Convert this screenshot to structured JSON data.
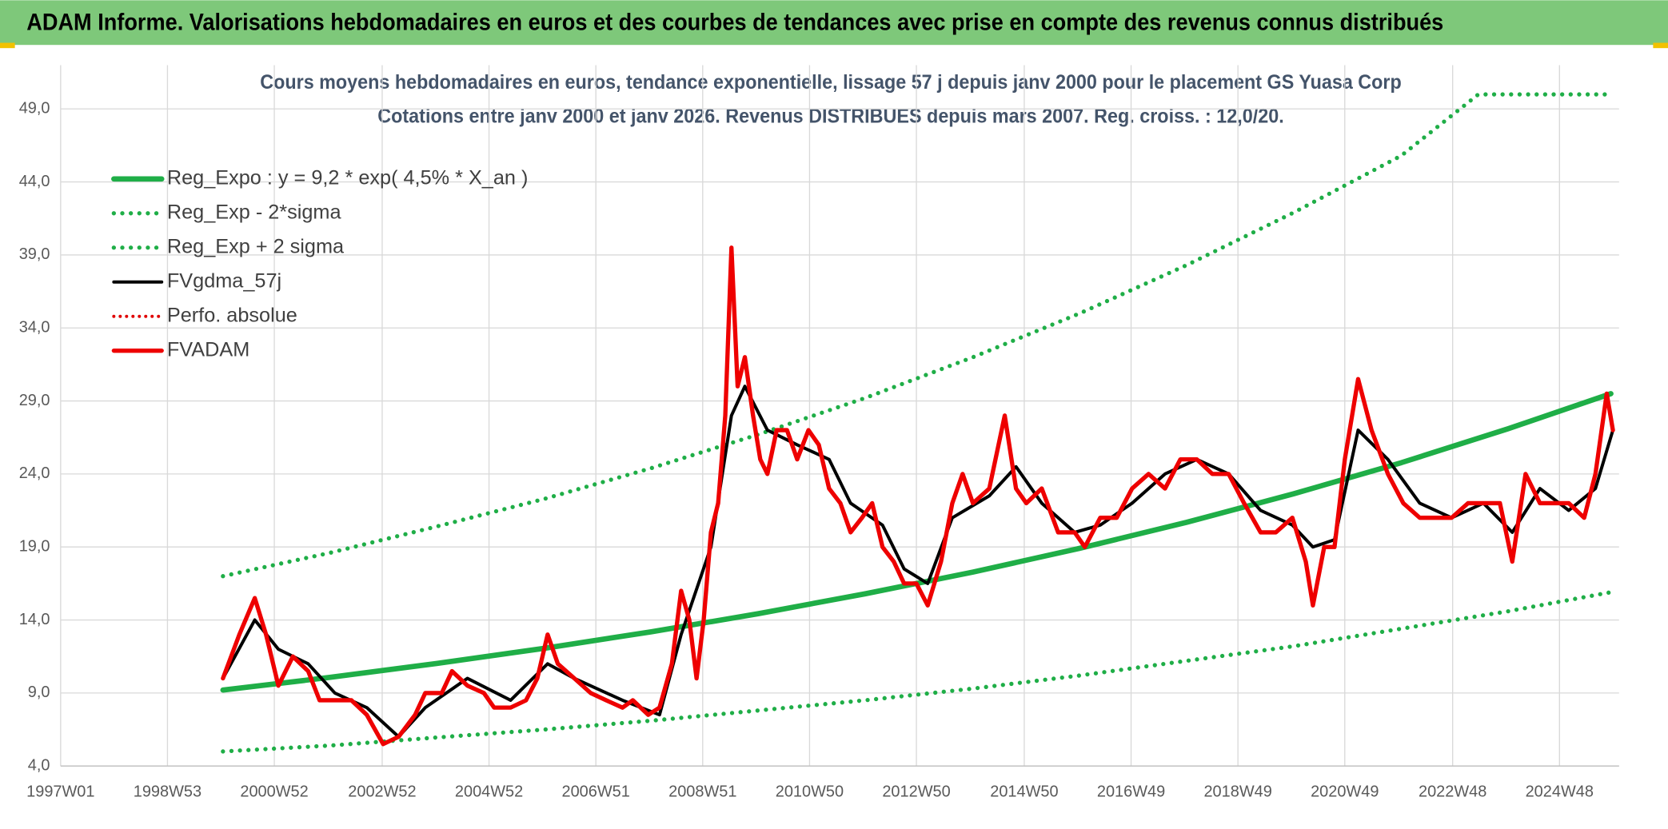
{
  "chart_data": {
    "type": "line",
    "header": "ADAM Informe. Valorisations hebdomadaires en euros et des courbes de tendances avec prise en compte des revenus connus distribués",
    "title": "Cours moyens hebdomadaires en euros, tendance exponentielle, lissage 57 j depuis janv 2000 pour le placement GS Yuasa Corp",
    "subtitle": "Cotations entre janv 2000 et janv 2026. Revenus DISTRIBUES depuis mars 2007. Reg. croiss. : 12,0/20.",
    "xlim": [
      0,
      1517
    ],
    "xticks": [
      {
        "value": 0,
        "label": "1997W01"
      },
      {
        "value": 104,
        "label": "1998W53"
      },
      {
        "value": 208,
        "label": "2000W52"
      },
      {
        "value": 313,
        "label": "2002W52"
      },
      {
        "value": 417,
        "label": "2004W52"
      },
      {
        "value": 521,
        "label": "2006W51"
      },
      {
        "value": 625,
        "label": "2008W51"
      },
      {
        "value": 729,
        "label": "2010W50"
      },
      {
        "value": 833,
        "label": "2012W50"
      },
      {
        "value": 938,
        "label": "2014W50"
      },
      {
        "value": 1042,
        "label": "2016W49"
      },
      {
        "value": 1146,
        "label": "2018W49"
      },
      {
        "value": 1250,
        "label": "2020W49"
      },
      {
        "value": 1355,
        "label": "2022W48"
      },
      {
        "value": 1459,
        "label": "2024W48"
      }
    ],
    "ylim": [
      4,
      52
    ],
    "yticks": [
      {
        "value": 4,
        "label": "4,0"
      },
      {
        "value": 9,
        "label": "9,0"
      },
      {
        "value": 14,
        "label": "14,0"
      },
      {
        "value": 19,
        "label": "19,0"
      },
      {
        "value": 24,
        "label": "24,0"
      },
      {
        "value": 29,
        "label": "29,0"
      },
      {
        "value": 34,
        "label": "34,0"
      },
      {
        "value": 39,
        "label": "39,0"
      },
      {
        "value": 44,
        "label": "44,0"
      },
      {
        "value": 49,
        "label": "49,0"
      }
    ],
    "grid": true,
    "legend": "top-left",
    "series": [
      {
        "name": "Reg_Expo : y = 9,2 * exp( 4,5% *  X_an )",
        "color": "#1fae47",
        "width": 5,
        "dash": "none",
        "x": [
          158,
          262,
          366,
          471,
          575,
          679,
          783,
          888,
          992,
          1096,
          1200,
          1305,
          1409,
          1509
        ],
        "values": [
          9.2,
          10.07,
          11.02,
          12.06,
          13.19,
          14.43,
          15.79,
          17.28,
          18.91,
          20.69,
          22.64,
          24.77,
          27.1,
          29.5
        ]
      },
      {
        "name": "Reg_Exp - 2*sigma",
        "color": "#1fae47",
        "width": 4,
        "dash": "0 8",
        "x": [
          158,
          262,
          366,
          471,
          575,
          679,
          783,
          888,
          992,
          1096,
          1200,
          1305,
          1409,
          1509
        ],
        "values": [
          5.0,
          5.4,
          5.95,
          6.5,
          7.1,
          7.8,
          8.5,
          9.3,
          10.2,
          11.2,
          12.2,
          13.4,
          14.6,
          15.9
        ]
      },
      {
        "name": "Reg_Exp + 2 sigma",
        "color": "#1fae47",
        "width": 4,
        "dash": "0 8",
        "x": [
          158,
          262,
          366,
          471,
          575,
          679,
          783,
          888,
          992,
          1096,
          1200,
          1305,
          1380,
          1509
        ],
        "values": [
          17.0,
          18.6,
          20.4,
          22.3,
          24.4,
          26.7,
          29.2,
          32.0,
          35.0,
          38.3,
          41.9,
          45.8,
          50,
          50
        ]
      },
      {
        "name": "FVgdma_57j",
        "color": "#000000",
        "width": 3,
        "dash": "none",
        "x": [
          158,
          189,
          212,
          241,
          267,
          298,
          329,
          355,
          396,
          438,
          474,
          500,
          547,
          583,
          604,
          633,
          653,
          666,
          688,
          717,
          748,
          769,
          800,
          821,
          844,
          868,
          904,
          930,
          955,
          987,
          1012,
          1043,
          1075,
          1106,
          1137,
          1168,
          1199,
          1219,
          1240,
          1263,
          1292,
          1323,
          1354,
          1385,
          1413,
          1440,
          1468,
          1494,
          1511
        ],
        "values": [
          10,
          14,
          12,
          11,
          9,
          8,
          6,
          8,
          10,
          8.5,
          11,
          10,
          8.5,
          7.5,
          13,
          19,
          28,
          30,
          27,
          26,
          25,
          22,
          20.5,
          17.5,
          16.5,
          21,
          22.5,
          24.5,
          22,
          20,
          20.5,
          22,
          24,
          25,
          24,
          21.5,
          20.5,
          19,
          19.5,
          27,
          25,
          22,
          21,
          22,
          20,
          23,
          21.5,
          23,
          27
        ]
      },
      {
        "name": "Perfo. absolue",
        "color": "#e00000",
        "width": 3,
        "dash": "0 6"
      },
      {
        "name": "FVADAM",
        "color": "#ee0000",
        "width": 4,
        "dash": "none",
        "x": [
          158,
          174,
          189,
          200,
          212,
          226,
          241,
          252,
          267,
          283,
          298,
          314,
          329,
          345,
          355,
          371,
          381,
          396,
          412,
          422,
          438,
          453,
          464,
          474,
          484,
          500,
          516,
          531,
          547,
          557,
          572,
          583,
          595,
          604,
          612,
          619,
          626,
          633,
          640,
          647,
          653,
          659,
          666,
          674,
          681,
          688,
          697,
          707,
          717,
          728,
          738,
          748,
          759,
          769,
          780,
          790,
          800,
          811,
          821,
          833,
          844,
          857,
          868,
          878,
          888,
          904,
          919,
          930,
          940,
          955,
          971,
          987,
          997,
          1012,
          1028,
          1043,
          1059,
          1075,
          1090,
          1106,
          1121,
          1137,
          1152,
          1168,
          1183,
          1199,
          1212,
          1219,
          1230,
          1240,
          1250,
          1263,
          1276,
          1292,
          1307,
          1323,
          1339,
          1354,
          1370,
          1385,
          1401,
          1413,
          1426,
          1440,
          1452,
          1468,
          1483,
          1494,
          1505,
          1511
        ],
        "values": [
          10,
          13,
          15.5,
          13,
          9.5,
          11.5,
          10.5,
          8.5,
          8.5,
          8.5,
          7.5,
          5.5,
          6,
          7.5,
          9,
          9,
          10.5,
          9.5,
          9,
          8,
          8,
          8.5,
          10,
          13,
          11,
          10,
          9,
          8.5,
          8,
          8.5,
          7.5,
          8,
          11,
          16,
          14,
          10,
          14,
          20,
          22,
          28,
          39.5,
          30,
          32,
          28,
          25,
          24,
          27,
          27,
          25,
          27,
          26,
          23,
          22,
          20,
          21,
          22,
          19,
          18,
          16.5,
          16.5,
          15,
          18,
          22,
          24,
          22,
          23,
          28,
          23,
          22,
          23,
          20,
          20,
          19,
          21,
          21,
          23,
          24,
          23,
          25,
          25,
          24,
          24,
          22,
          20,
          20,
          21,
          18,
          15,
          19,
          19,
          25,
          30.5,
          27,
          24,
          22,
          21,
          21,
          21,
          22,
          22,
          22,
          18,
          24,
          22,
          22,
          22,
          21,
          24,
          29.5,
          27
        ]
      }
    ]
  }
}
